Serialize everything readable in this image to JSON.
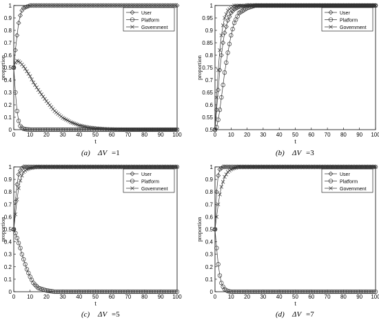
{
  "figure": {
    "panels": [
      {
        "caption_prefix": "(a)",
        "caption_symbol": "ΔV",
        "caption_value": "=1"
      },
      {
        "caption_prefix": "(b)",
        "caption_symbol": "ΔV",
        "caption_value": "=3"
      },
      {
        "caption_prefix": "(c)",
        "caption_symbol": "ΔV",
        "caption_value": "=5"
      },
      {
        "caption_prefix": "(d)",
        "caption_symbol": "ΔV",
        "caption_value": "=7"
      }
    ]
  },
  "chart_data": [
    {
      "type": "line",
      "caption": "(a) ΔV=1",
      "xlabel": "t",
      "ylabel": "proportion",
      "xlim": [
        0,
        100
      ],
      "ylim": [
        0,
        1
      ],
      "x_ticks": [
        "0",
        "10",
        "20",
        "30",
        "40",
        "50",
        "60",
        "70",
        "80",
        "90",
        "100"
      ],
      "y_ticks": [
        "0",
        "0.1",
        "0.2",
        "0.3",
        "0.4",
        "0.5",
        "0.6",
        "0.7",
        "0.8",
        "0.9",
        "1"
      ],
      "legend_position": "top-right",
      "series": [
        {
          "name": "User",
          "marker": "diamond",
          "x": [
            0,
            1,
            2,
            3,
            4,
            5,
            6,
            8,
            10,
            15,
            20,
            30,
            40,
            50,
            60,
            70,
            80,
            90,
            100
          ],
          "values": [
            0.5,
            0.64,
            0.76,
            0.86,
            0.92,
            0.96,
            0.98,
            0.99,
            1.0,
            1.0,
            1.0,
            1.0,
            1.0,
            1.0,
            1.0,
            1.0,
            1.0,
            1.0,
            1.0
          ]
        },
        {
          "name": "Platform",
          "marker": "circle",
          "x": [
            0,
            1,
            2,
            3,
            4,
            5,
            6,
            8,
            10,
            15,
            20,
            30,
            40,
            50,
            60,
            70,
            80,
            90,
            100
          ],
          "values": [
            0.5,
            0.3,
            0.15,
            0.07,
            0.03,
            0.015,
            0.007,
            0.002,
            0.0,
            0.0,
            0.0,
            0.0,
            0.0,
            0.0,
            0.0,
            0.0,
            0.0,
            0.0,
            0.0
          ]
        },
        {
          "name": "Government",
          "marker": "x",
          "x": [
            0,
            1,
            2,
            3,
            4,
            5,
            6,
            8,
            10,
            12,
            15,
            20,
            25,
            30,
            35,
            40,
            45,
            50,
            55,
            60,
            70,
            80,
            90,
            100
          ],
          "values": [
            0.5,
            0.54,
            0.555,
            0.55,
            0.54,
            0.525,
            0.51,
            0.47,
            0.43,
            0.38,
            0.32,
            0.23,
            0.15,
            0.095,
            0.06,
            0.035,
            0.02,
            0.012,
            0.007,
            0.004,
            0.001,
            0.0,
            0.0,
            0.0
          ]
        }
      ]
    },
    {
      "type": "line",
      "caption": "(b) ΔV=3",
      "xlabel": "t",
      "ylabel": "proportion",
      "xlim": [
        0,
        100
      ],
      "ylim": [
        0.5,
        1
      ],
      "x_ticks": [
        "0",
        "10",
        "20",
        "30",
        "40",
        "50",
        "60",
        "70",
        "80",
        "90",
        "100"
      ],
      "y_ticks": [
        "0.5",
        "0.55",
        "0.6",
        "0.65",
        "0.7",
        "0.75",
        "0.8",
        "0.85",
        "0.9",
        "0.95",
        "1"
      ],
      "legend_position": "top-right",
      "series": [
        {
          "name": "User",
          "marker": "diamond",
          "x": [
            0,
            1,
            2,
            3,
            4,
            5,
            6,
            8,
            10,
            12,
            15,
            20,
            25,
            30,
            40,
            50,
            60,
            70,
            80,
            90,
            100
          ],
          "values": [
            0.5,
            0.58,
            0.66,
            0.74,
            0.8,
            0.85,
            0.89,
            0.94,
            0.97,
            0.985,
            0.995,
            1.0,
            1.0,
            1.0,
            1.0,
            1.0,
            1.0,
            1.0,
            1.0,
            1.0,
            1.0
          ]
        },
        {
          "name": "Platform",
          "marker": "circle",
          "x": [
            0,
            1,
            2,
            3,
            4,
            5,
            6,
            8,
            10,
            12,
            15,
            20,
            25,
            30,
            40,
            50,
            60,
            70,
            80,
            90,
            100
          ],
          "values": [
            0.5,
            0.51,
            0.54,
            0.58,
            0.63,
            0.68,
            0.73,
            0.81,
            0.88,
            0.93,
            0.97,
            0.99,
            1.0,
            1.0,
            1.0,
            1.0,
            1.0,
            1.0,
            1.0,
            1.0,
            1.0
          ]
        },
        {
          "name": "Government",
          "marker": "x",
          "x": [
            0,
            1,
            2,
            3,
            4,
            5,
            6,
            8,
            10,
            12,
            15,
            20,
            30,
            40,
            50,
            60,
            70,
            80,
            90,
            100
          ],
          "values": [
            0.5,
            0.63,
            0.74,
            0.82,
            0.88,
            0.92,
            0.95,
            0.98,
            0.99,
            1.0,
            1.0,
            1.0,
            1.0,
            1.0,
            1.0,
            1.0,
            1.0,
            1.0,
            1.0,
            1.0
          ]
        }
      ]
    },
    {
      "type": "line",
      "caption": "(c) ΔV=5",
      "xlabel": "t",
      "ylabel": "proportion",
      "xlim": [
        0,
        100
      ],
      "ylim": [
        0,
        1
      ],
      "x_ticks": [
        "0",
        "10",
        "20",
        "30",
        "40",
        "50",
        "60",
        "70",
        "80",
        "90",
        "100"
      ],
      "y_ticks": [
        "0",
        "0.1",
        "0.2",
        "0.3",
        "0.4",
        "0.5",
        "0.6",
        "0.7",
        "0.8",
        "0.9",
        "1"
      ],
      "legend_position": "top-right",
      "series": [
        {
          "name": "User",
          "marker": "diamond",
          "x": [
            0,
            1,
            2,
            3,
            4,
            5,
            6,
            8,
            10,
            15,
            20,
            30,
            40,
            50,
            60,
            70,
            80,
            90,
            100
          ],
          "values": [
            0.5,
            0.72,
            0.86,
            0.94,
            0.97,
            0.99,
            1.0,
            1.0,
            1.0,
            1.0,
            1.0,
            1.0,
            1.0,
            1.0,
            1.0,
            1.0,
            1.0,
            1.0,
            1.0
          ]
        },
        {
          "name": "Platform",
          "marker": "circle",
          "x": [
            0,
            1,
            2,
            3,
            4,
            5,
            6,
            8,
            10,
            12,
            15,
            20,
            25,
            30,
            40,
            50,
            60,
            70,
            80,
            90,
            100
          ],
          "values": [
            0.5,
            0.47,
            0.43,
            0.39,
            0.35,
            0.3,
            0.26,
            0.18,
            0.12,
            0.07,
            0.03,
            0.01,
            0.0,
            0.0,
            0.0,
            0.0,
            0.0,
            0.0,
            0.0,
            0.0,
            0.0
          ]
        },
        {
          "name": "Government",
          "marker": "x",
          "x": [
            0,
            1,
            2,
            3,
            4,
            5,
            6,
            8,
            10,
            15,
            20,
            30,
            40,
            50,
            60,
            70,
            80,
            90,
            100
          ],
          "values": [
            0.5,
            0.62,
            0.74,
            0.83,
            0.89,
            0.93,
            0.96,
            0.98,
            0.99,
            1.0,
            1.0,
            1.0,
            1.0,
            1.0,
            1.0,
            1.0,
            1.0,
            1.0,
            1.0
          ]
        }
      ]
    },
    {
      "type": "line",
      "caption": "(d) ΔV=7",
      "xlabel": "t",
      "ylabel": "proportion",
      "xlim": [
        0,
        100
      ],
      "ylim": [
        0,
        1
      ],
      "x_ticks": [
        "0",
        "10",
        "20",
        "30",
        "40",
        "50",
        "60",
        "70",
        "80",
        "90",
        "100"
      ],
      "y_ticks": [
        "0",
        "0.1",
        "0.2",
        "0.3",
        "0.4",
        "0.5",
        "0.6",
        "0.7",
        "0.8",
        "0.9",
        "1"
      ],
      "legend_position": "top-right",
      "series": [
        {
          "name": "User",
          "marker": "diamond",
          "x": [
            0,
            1,
            2,
            3,
            4,
            5,
            6,
            8,
            10,
            15,
            20,
            30,
            40,
            50,
            60,
            70,
            80,
            90,
            100
          ],
          "values": [
            0.5,
            0.8,
            0.93,
            0.98,
            0.99,
            1.0,
            1.0,
            1.0,
            1.0,
            1.0,
            1.0,
            1.0,
            1.0,
            1.0,
            1.0,
            1.0,
            1.0,
            1.0,
            1.0
          ]
        },
        {
          "name": "Platform",
          "marker": "circle",
          "x": [
            0,
            1,
            2,
            3,
            4,
            5,
            6,
            8,
            10,
            15,
            20,
            30,
            40,
            50,
            60,
            70,
            80,
            90,
            100
          ],
          "values": [
            0.5,
            0.35,
            0.22,
            0.13,
            0.07,
            0.04,
            0.02,
            0.005,
            0.0,
            0.0,
            0.0,
            0.0,
            0.0,
            0.0,
            0.0,
            0.0,
            0.0,
            0.0,
            0.0
          ]
        },
        {
          "name": "Government",
          "marker": "x",
          "x": [
            0,
            1,
            2,
            3,
            4,
            5,
            6,
            8,
            10,
            12,
            15,
            20,
            30,
            40,
            50,
            60,
            70,
            80,
            90,
            100
          ],
          "values": [
            0.5,
            0.6,
            0.7,
            0.78,
            0.84,
            0.88,
            0.92,
            0.96,
            0.98,
            0.99,
            1.0,
            1.0,
            1.0,
            1.0,
            1.0,
            1.0,
            1.0,
            1.0,
            1.0,
            1.0
          ]
        }
      ]
    }
  ]
}
